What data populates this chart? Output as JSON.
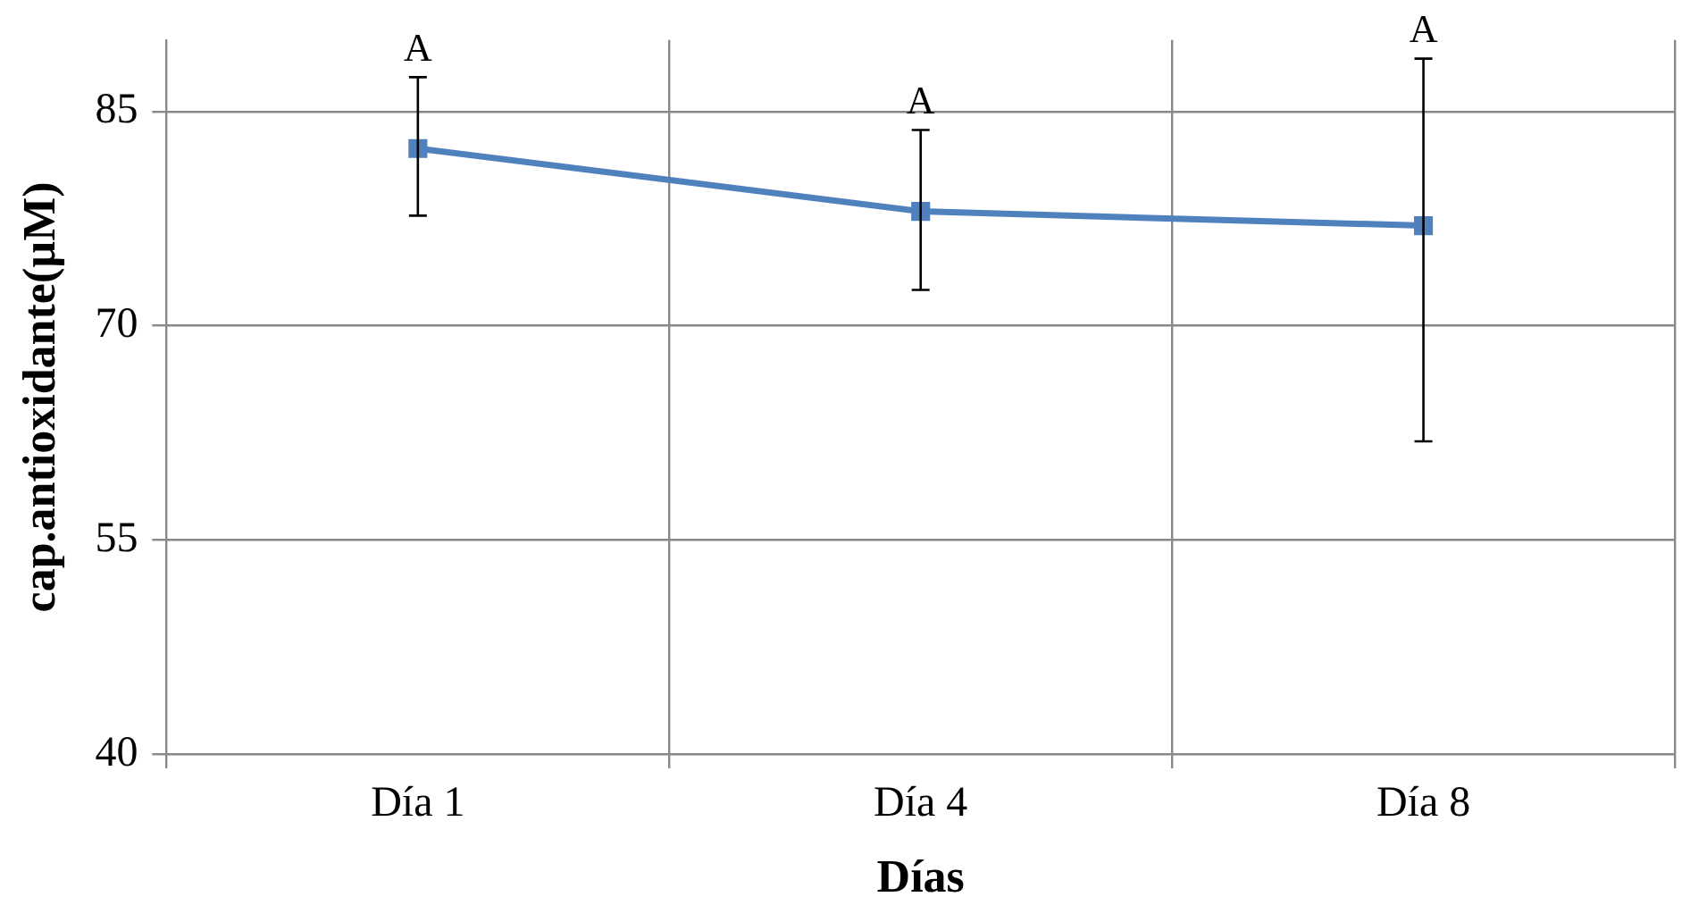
{
  "chart_data": {
    "type": "line",
    "xlabel": "Días",
    "ylabel": "cap.antioxidante(µM)",
    "categories": [
      "Día 1",
      "Día 4",
      "Día 8"
    ],
    "series": [
      {
        "color": "#4f81bd",
        "values": [
          82.4,
          78.0,
          77.0
        ],
        "errors": [
          [
            77.7,
            87.4
          ],
          [
            72.5,
            83.7
          ],
          [
            61.9,
            88.7
          ]
        ]
      }
    ],
    "ylim": [
      40,
      90
    ],
    "yticks": [
      40,
      55,
      70,
      85
    ],
    "grid": true,
    "legend": false,
    "marker": "square",
    "line_style": "solid",
    "annotations": [
      {
        "text": "A",
        "x": "Día 1",
        "y": 87.4
      },
      {
        "text": "A",
        "x": "Día 4",
        "y": 83.7
      },
      {
        "text": "A",
        "x": "Día 8",
        "y": 88.7
      }
    ]
  }
}
